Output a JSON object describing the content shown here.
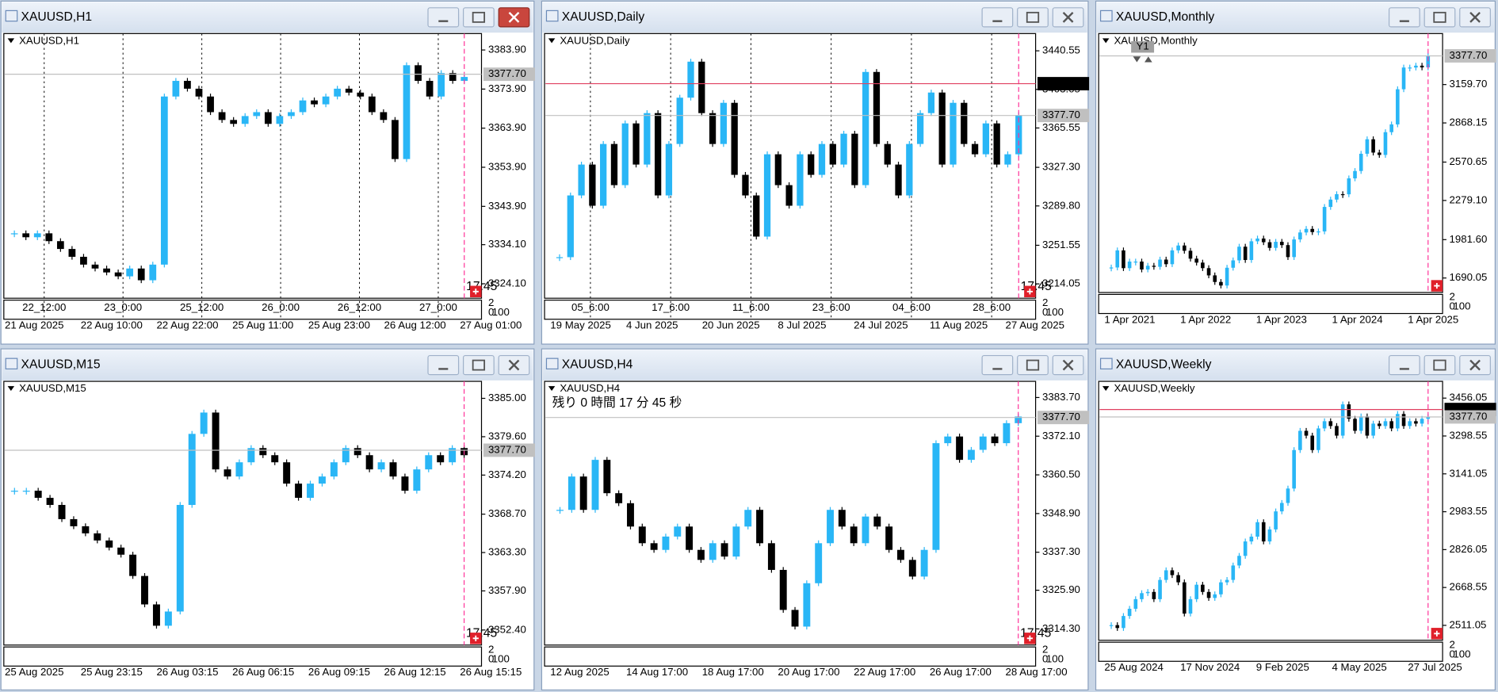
{
  "windows": [
    {
      "title": "XAUUSD,H1",
      "type": "candlestick",
      "close": [
        3337,
        3336,
        3337,
        3335,
        3333,
        3331,
        3329,
        3328,
        3327,
        3326,
        3328,
        3325,
        3329,
        3372,
        3376,
        3374,
        3372,
        3368,
        3366,
        3365,
        3367,
        3368,
        3365,
        3367,
        3368,
        3371,
        3370,
        3372,
        3374,
        3373,
        3372,
        3368,
        3366,
        3356,
        3380,
        3376,
        3372,
        3378,
        3376,
        3377
      ],
      "ylim": [
        3320.4,
        3388.1
      ],
      "yticks": [
        {
          "value": 3383.9,
          "label": "3383.90"
        },
        {
          "value": 3373.9,
          "label": "3373.90"
        },
        {
          "value": 3363.9,
          "label": "3363.90"
        },
        {
          "value": 3353.9,
          "label": "3353.90"
        },
        {
          "value": 3343.9,
          "label": "3343.90"
        },
        {
          "value": 3334.1,
          "label": "3334.10"
        },
        {
          "value": 3324.1,
          "label": "3324.10"
        }
      ],
      "levels": [
        {
          "value": 3377.7,
          "label": "3377.70",
          "color": "#c0c0c0"
        }
      ],
      "time_labels": [
        "22_12:00",
        "23_0:00",
        "25_12:00",
        "26_0:00",
        "26_12:00",
        "27_0:00"
      ],
      "date_labels": [
        "21 Aug 2025",
        "22 Aug 10:00",
        "22 Aug 22:00",
        "25 Aug 11:00",
        "25 Aug 23:00",
        "26 Aug 12:00",
        "27 Aug 01:00"
      ],
      "timer": "17:45",
      "sub_labels": [
        "2",
        "0",
        "100"
      ],
      "active": true
    },
    {
      "title": "XAUUSD,Daily",
      "type": "candlestick",
      "close": [
        3240,
        3300,
        3330,
        3290,
        3350,
        3310,
        3370,
        3330,
        3380,
        3300,
        3350,
        3395,
        3430,
        3380,
        3350,
        3390,
        3320,
        3300,
        3260,
        3340,
        3310,
        3290,
        3340,
        3320,
        3350,
        3330,
        3360,
        3310,
        3420,
        3350,
        3330,
        3300,
        3350,
        3380,
        3400,
        3330,
        3390,
        3350,
        3340,
        3370,
        3330,
        3340,
        3378
      ],
      "ylim": [
        3200.1,
        3457.3
      ],
      "yticks": [
        {
          "value": 3440.55,
          "label": "3440.55"
        },
        {
          "value": 3403.05,
          "label": "3403.05"
        },
        {
          "value": 3365.55,
          "label": "3365.55"
        },
        {
          "value": 3327.3,
          "label": "3327.30"
        },
        {
          "value": 3289.8,
          "label": "3289.80"
        },
        {
          "value": 3251.55,
          "label": "3251.55"
        },
        {
          "value": 3214.05,
          "label": "3214.05"
        }
      ],
      "levels": [
        {
          "value": 3408.61,
          "label": "3408.61",
          "color": "#000000"
        },
        {
          "value": 3377.7,
          "label": "3377.70",
          "color": "#c0c0c0"
        }
      ],
      "time_labels": [
        "05_6:00",
        "17_6:00",
        "11_6:00",
        "23_6:00",
        "04_6:00",
        "28_6:00"
      ],
      "date_labels": [
        "19 May 2025",
        "4 Jun 2025",
        "20 Jun 2025",
        "8 Jul 2025",
        "24 Jul 2025",
        "11 Aug 2025",
        "27 Aug 2025"
      ],
      "timer": "17:45",
      "sub_labels": [
        "2",
        "0",
        "100"
      ]
    },
    {
      "title": "XAUUSD,Monthly",
      "type": "candlestick",
      "close": [
        1770,
        1900,
        1765,
        1815,
        1815,
        1755,
        1783,
        1775,
        1830,
        1795,
        1900,
        1937,
        1897,
        1837,
        1807,
        1765,
        1710,
        1660,
        1633,
        1768,
        1824,
        1928,
        1827,
        1969,
        1990,
        1962,
        1919,
        1965,
        1940,
        1849,
        1983,
        2036,
        2063,
        2039,
        2044,
        2230,
        2286,
        2327,
        2326,
        2447,
        2503,
        2634,
        2744,
        2643,
        2625,
        2798,
        2857,
        3124,
        3289,
        3289,
        3303,
        3290,
        3378
      ],
      "ylim": [
        1580,
        3547
      ],
      "yticks": [
        {
          "value": 3159.7,
          "label": "3159.70"
        },
        {
          "value": 2868.15,
          "label": "2868.15"
        },
        {
          "value": 2570.65,
          "label": "2570.65"
        },
        {
          "value": 2279.1,
          "label": "2279.10"
        },
        {
          "value": 1981.6,
          "label": "1981.60"
        },
        {
          "value": 1690.05,
          "label": "1690.05"
        }
      ],
      "levels": [
        {
          "value": 3377.7,
          "label": "3377.70",
          "color": "#c0c0c0"
        }
      ],
      "time_labels": [],
      "date_labels": [
        "1 Apr 2021",
        "1 Apr 2022",
        "1 Apr 2023",
        "1 Apr 2024",
        "1 Apr 2025"
      ],
      "badge": "Y1",
      "sub_labels": [
        "2",
        "0",
        "100"
      ]
    },
    {
      "title": "XAUUSD,M15",
      "type": "candlestick",
      "close": [
        3372,
        3372,
        3371,
        3370,
        3368,
        3367,
        3366,
        3365,
        3364,
        3363,
        3360,
        3356,
        3353,
        3355,
        3370,
        3380,
        3383,
        3375,
        3374,
        3376,
        3378,
        3377,
        3376,
        3373,
        3371,
        3373,
        3374,
        3376,
        3378,
        3377,
        3375,
        3376,
        3374,
        3372,
        3375,
        3377,
        3376,
        3378,
        3377
      ],
      "ylim": [
        3350.28,
        3387.39
      ],
      "yticks": [
        {
          "value": 3385,
          "label": "3385.00"
        },
        {
          "value": 3379.6,
          "label": "3379.60"
        },
        {
          "value": 3374.2,
          "label": "3374.20"
        },
        {
          "value": 3368.7,
          "label": "3368.70"
        },
        {
          "value": 3363.3,
          "label": "3363.30"
        },
        {
          "value": 3357.9,
          "label": "3357.90"
        },
        {
          "value": 3352.4,
          "label": "3352.40"
        }
      ],
      "levels": [
        {
          "value": 3377.7,
          "label": "3377.70",
          "color": "#c0c0c0"
        }
      ],
      "time_labels": [],
      "date_labels": [
        "25 Aug 2025",
        "25 Aug 23:15",
        "26 Aug 03:15",
        "26 Aug 06:15",
        "26 Aug 09:15",
        "26 Aug 12:15",
        "26 Aug 15:15"
      ],
      "timer": "17:45",
      "sub_labels": [
        "2",
        "0",
        "100"
      ]
    },
    {
      "title": "XAUUSD,H4",
      "type": "candlestick",
      "close": [
        3350,
        3360,
        3350,
        3365,
        3355,
        3352,
        3345,
        3340,
        3338,
        3342,
        3345,
        3338,
        3335,
        3340,
        3336,
        3345,
        3350,
        3340,
        3332,
        3320,
        3315,
        3328,
        3340,
        3350,
        3345,
        3340,
        3348,
        3345,
        3338,
        3335,
        3330,
        3338,
        3370,
        3372,
        3365,
        3368,
        3372,
        3370,
        3376,
        3378
      ],
      "ylim": [
        3309.46,
        3388.54
      ],
      "yticks": [
        {
          "value": 3383.7,
          "label": "3383.70"
        },
        {
          "value": 3372.1,
          "label": "3372.10"
        },
        {
          "value": 3360.5,
          "label": "3360.50"
        },
        {
          "value": 3348.9,
          "label": "3348.90"
        },
        {
          "value": 3337.3,
          "label": "3337.30"
        },
        {
          "value": 3325.9,
          "label": "3325.90"
        },
        {
          "value": 3314.3,
          "label": "3314.30"
        }
      ],
      "levels": [
        {
          "value": 3377.7,
          "label": "3377.70",
          "color": "#c0c0c0"
        }
      ],
      "time_labels": [],
      "date_labels": [
        "12 Aug 2025",
        "14 Aug 17:00",
        "18 Aug 17:00",
        "20 Aug 17:00",
        "22 Aug 17:00",
        "26 Aug 17:00",
        "28 Aug 17:00"
      ],
      "countdown": "残り 0 時間 17 分 45 秒",
      "timer": "17:45",
      "sub_labels": [
        "2",
        "0",
        "100"
      ]
    },
    {
      "title": "XAUUSD,Weekly",
      "type": "candlestick",
      "close": [
        2512,
        2500,
        2550,
        2580,
        2620,
        2645,
        2650,
        2620,
        2700,
        2740,
        2720,
        2690,
        2560,
        2620,
        2680,
        2650,
        2625,
        2640,
        2690,
        2700,
        2760,
        2800,
        2860,
        2880,
        2940,
        2860,
        2910,
        2985,
        3020,
        3080,
        3240,
        3320,
        3300,
        3240,
        3330,
        3360,
        3340,
        3300,
        3430,
        3370,
        3320,
        3380,
        3300,
        3350,
        3340,
        3360,
        3330,
        3390,
        3340,
        3360,
        3350,
        3370,
        3378
      ],
      "ylim": [
        2449,
        3525.7
      ],
      "yticks": [
        {
          "value": 3456.05,
          "label": "3456.05"
        },
        {
          "value": 3298.55,
          "label": "3298.55"
        },
        {
          "value": 3141.05,
          "label": "3141.05"
        },
        {
          "value": 2983.55,
          "label": "2983.55"
        },
        {
          "value": 2826.05,
          "label": "2826.05"
        },
        {
          "value": 2668.55,
          "label": "2668.55"
        },
        {
          "value": 2511.05,
          "label": "2511.05"
        }
      ],
      "levels": [
        {
          "value": 3408.61,
          "label": "3408.61",
          "color": "#000000"
        },
        {
          "value": 3377.7,
          "label": "3377.70",
          "color": "#c0c0c0"
        }
      ],
      "time_labels": [],
      "date_labels": [
        "25 Aug 2024",
        "17 Nov 2024",
        "9 Feb 2025",
        "4 May 2025",
        "27 Jul 2025"
      ],
      "sub_labels": [
        "2",
        "0",
        "100"
      ]
    }
  ]
}
